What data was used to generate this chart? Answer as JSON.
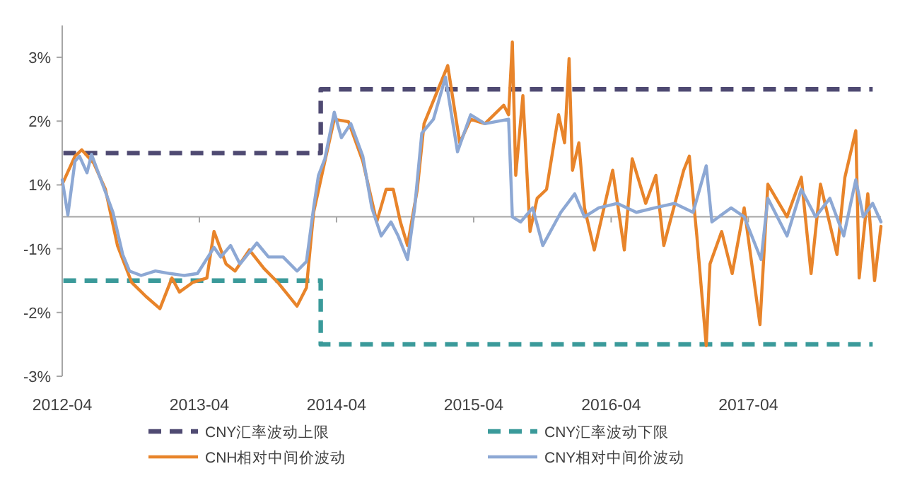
{
  "chart_data": {
    "type": "line",
    "legend": "bottom",
    "xlim": [
      "2012-04-01",
      "2018-03-20"
    ],
    "xticks": [
      {
        "value": "2012-04-01",
        "label": "2012-04"
      },
      {
        "value": "2013-04-01",
        "label": "2013-04"
      },
      {
        "value": "2014-04-01",
        "label": "2014-04"
      },
      {
        "value": "2015-04-01",
        "label": "2015-04"
      },
      {
        "value": "2016-04-01",
        "label": "2016-04"
      },
      {
        "value": "2017-04-01",
        "label": "2017-04"
      }
    ],
    "ylim": [
      -2.5,
      3
    ],
    "yticks": [
      {
        "value": -2.5,
        "label": "-3%"
      },
      {
        "value": -1.5,
        "label": "-2%"
      },
      {
        "value": -0.5,
        "label": "-1%"
      },
      {
        "value": 0.5,
        "label": "1%"
      },
      {
        "value": 1.5,
        "label": "2%"
      },
      {
        "value": 2.5,
        "label": "3%"
      }
    ],
    "series": [
      {
        "name": "CNY汇率波动上限",
        "color": "#4f4a72",
        "line_style": "dashed",
        "x": [
          "2012-04-04",
          "2014-02-18",
          "2014-02-18",
          "2018-02-26"
        ],
        "values": [
          1,
          1,
          2,
          2
        ]
      },
      {
        "name": "CNY汇率波动下限",
        "color": "#3a9a9a",
        "line_style": "dashed",
        "x": [
          "2012-04-04",
          "2014-02-18",
          "2014-02-18",
          "2018-02-26"
        ],
        "values": [
          -1,
          -1,
          -2,
          -2
        ]
      },
      {
        "name": "CNH相对中间价波动",
        "color": "#e8842a",
        "line_style": "solid",
        "x": [
          "2012-04-01",
          "2012-05-05",
          "2012-05-23",
          "2012-06-24",
          "2012-07-25",
          "2012-08-26",
          "2012-10-03",
          "2012-11-10",
          "2012-12-17",
          "2013-01-18",
          "2013-02-07",
          "2013-03-14",
          "2013-04-21",
          "2013-05-10",
          "2013-06-11",
          "2013-07-05",
          "2013-08-12",
          "2013-09-20",
          "2013-10-27",
          "2013-12-17",
          "2014-01-11",
          "2014-01-30",
          "2014-03-01",
          "2014-03-26",
          "2014-05-03",
          "2014-06-10",
          "2014-07-17",
          "2014-08-11",
          "2014-08-30",
          "2014-09-18",
          "2014-10-07",
          "2014-11-02",
          "2014-11-20",
          "2015-01-22",
          "2015-02-23",
          "2015-03-24",
          "2015-05-01",
          "2015-06-20",
          "2015-07-03",
          "2015-07-13",
          "2015-07-22",
          "2015-08-10",
          "2015-08-29",
          "2015-09-17",
          "2015-10-12",
          "2015-11-13",
          "2015-11-29",
          "2015-12-11",
          "2015-12-20",
          "2016-01-06",
          "2016-01-21",
          "2016-02-16",
          "2016-04-05",
          "2016-05-06",
          "2016-05-27",
          "2016-07-02",
          "2016-07-29",
          "2016-08-19",
          "2016-10-11",
          "2016-10-26",
          "2016-11-15",
          "2016-12-10",
          "2016-12-20",
          "2017-01-20",
          "2017-02-17",
          "2017-03-21",
          "2017-05-02",
          "2017-05-23",
          "2017-07-13",
          "2017-08-20",
          "2017-09-15",
          "2017-10-10",
          "2017-11-23",
          "2017-12-14",
          "2018-01-12",
          "2018-01-21",
          "2018-02-13",
          "2018-03-03",
          "2018-03-20"
        ],
        "values": [
          0.51,
          0.95,
          1.05,
          0.84,
          0.43,
          -0.45,
          -1.03,
          -1.25,
          -1.44,
          -0.96,
          -1.18,
          -1.03,
          -0.96,
          -0.23,
          -0.74,
          -0.85,
          -0.52,
          -0.81,
          -1.03,
          -1.4,
          -1.11,
          0.07,
          0.87,
          1.53,
          1.49,
          0.87,
          -0.08,
          0.43,
          0.43,
          -0.08,
          -0.45,
          0.43,
          1.46,
          2.37,
          1.16,
          1.53,
          1.46,
          1.75,
          1.6,
          2.74,
          0.65,
          1.9,
          -0.23,
          0.29,
          0.43,
          1.6,
          1.16,
          2.48,
          0.73,
          1.16,
          0.14,
          -0.52,
          0.73,
          -0.52,
          0.91,
          0.21,
          0.65,
          -0.45,
          0.73,
          0.95,
          -0.3,
          -2.02,
          -0.74,
          -0.23,
          -0.89,
          0.14,
          -1.69,
          0.51,
          0,
          0.62,
          -0.89,
          0.51,
          -0.59,
          0.62,
          1.35,
          -0.96,
          0.36,
          -1.0,
          -0.15
        ]
      },
      {
        "name": "CNY相对中间价波动",
        "color": "#8da8d4",
        "line_style": "solid",
        "x": [
          "2012-04-01",
          "2012-04-16",
          "2012-05-05",
          "2012-05-17",
          "2012-06-06",
          "2012-06-18",
          "2012-07-13",
          "2012-08-14",
          "2012-09-09",
          "2012-09-27",
          "2012-10-28",
          "2012-12-05",
          "2013-01-13",
          "2013-02-20",
          "2013-03-27",
          "2013-05-10",
          "2013-05-28",
          "2013-06-23",
          "2013-07-18",
          "2013-09-01",
          "2013-10-02",
          "2013-11-10",
          "2013-12-17",
          "2014-01-11",
          "2014-01-30",
          "2014-02-12",
          "2014-03-01",
          "2014-03-26",
          "2014-04-14",
          "2014-05-09",
          "2014-06-10",
          "2014-07-04",
          "2014-07-29",
          "2014-08-24",
          "2014-09-12",
          "2014-10-07",
          "2014-10-26",
          "2014-11-14",
          "2014-12-15",
          "2015-01-16",
          "2015-02-17",
          "2015-03-24",
          "2015-05-01",
          "2015-07-03",
          "2015-07-13",
          "2015-08-04",
          "2015-09-05",
          "2015-10-02",
          "2015-11-19",
          "2015-12-26",
          "2016-01-21",
          "2016-02-28",
          "2016-04-17",
          "2016-06-07",
          "2016-07-26",
          "2016-09-16",
          "2016-11-05",
          "2016-12-10",
          "2016-12-25",
          "2017-02-14",
          "2017-03-21",
          "2017-05-05",
          "2017-05-23",
          "2017-07-13",
          "2017-08-20",
          "2017-09-27",
          "2017-11-04",
          "2017-12-11",
          "2018-01-12",
          "2018-02-01",
          "2018-02-26",
          "2018-03-20"
        ],
        "values": [
          0.58,
          0.03,
          0.87,
          0.95,
          0.69,
          0.98,
          0.58,
          0.07,
          -0.59,
          -0.85,
          -0.92,
          -0.85,
          -0.89,
          -0.92,
          -0.89,
          -0.48,
          -0.63,
          -0.45,
          -0.74,
          -0.41,
          -0.63,
          -0.63,
          -0.85,
          -0.7,
          0.14,
          0.65,
          0.91,
          1.64,
          1.24,
          1.46,
          0.95,
          0.14,
          -0.3,
          -0.08,
          -0.3,
          -0.67,
          0.14,
          1.31,
          1.53,
          2.19,
          1.02,
          1.6,
          1.46,
          1.53,
          0,
          -0.08,
          0.14,
          -0.45,
          0.07,
          0.36,
          0,
          0.14,
          0.21,
          0.07,
          0.14,
          0.21,
          0.07,
          0.8,
          -0.08,
          0.14,
          0,
          -0.67,
          0.29,
          -0.3,
          0.43,
          0,
          0.29,
          -0.3,
          0.58,
          0,
          0.21,
          -0.08
        ]
      }
    ]
  }
}
